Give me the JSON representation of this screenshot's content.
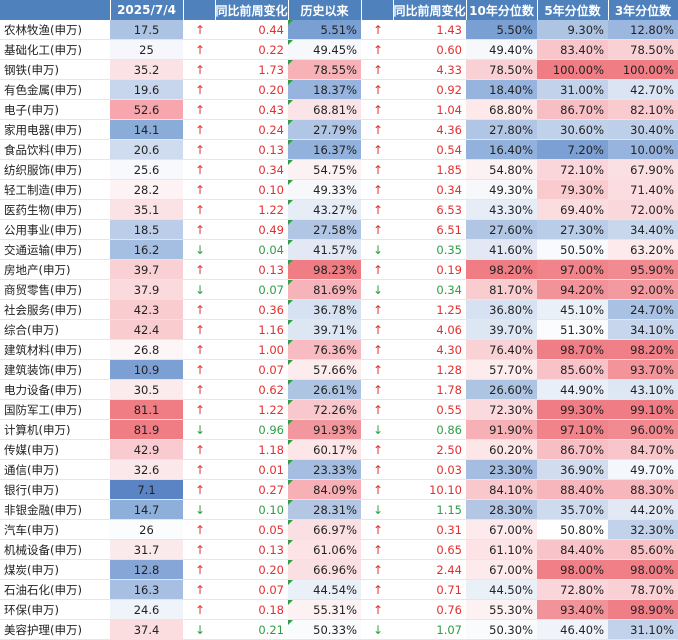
{
  "headers": [
    "",
    "2025/7/4",
    "",
    "同比前周变化",
    "历史以来",
    "",
    "同比前周变化",
    "10年分位数",
    "5年分位数",
    "3年分位数"
  ],
  "colors": {
    "header_bg": "#4f81bd",
    "up": "#e03030",
    "down": "#2e9d45"
  },
  "rows": [
    {
      "name": "农林牧渔(申万)",
      "val": "17.5",
      "a1": "↑",
      "c1": "0.44",
      "hist": "5.51%",
      "a2": "↑",
      "c2": "1.43",
      "p10": "5.50%",
      "p5": "9.30%",
      "p3": "12.80%",
      "bg": [
        "#adc3e3",
        "#7a9fd3",
        "#7a9fd3",
        "#aec4e3",
        "#9cb7df"
      ]
    },
    {
      "name": "基础化工(申万)",
      "val": "25",
      "a1": "↑",
      "c1": "0.22",
      "hist": "49.45%",
      "a2": "↑",
      "c2": "0.60",
      "p10": "49.40%",
      "p5": "83.40%",
      "p3": "78.50%",
      "bg": [
        "#f5f7fc",
        "#f7f8fc",
        "#f7f8fc",
        "#f8c5ca",
        "#f9d1d5"
      ]
    },
    {
      "name": "钢铁(申万)",
      "val": "35.2",
      "a1": "↑",
      "c1": "1.73",
      "hist": "78.55%",
      "a2": "↑",
      "c2": "4.33",
      "p10": "78.50%",
      "p5": "100.00%",
      "p3": "100.00%",
      "bg": [
        "#fbe3e5",
        "#f7b2b8",
        "#f9d1d5",
        "#f07c84",
        "#f07c84"
      ]
    },
    {
      "name": "有色金属(申万)",
      "val": "19.6",
      "a1": "↑",
      "c1": "0.20",
      "hist": "18.37%",
      "a2": "↑",
      "c2": "0.92",
      "p10": "18.40%",
      "p5": "31.00%",
      "p3": "42.70%",
      "bg": [
        "#c7d6ec",
        "#97b4de",
        "#97b4de",
        "#c1d2ea",
        "#dbe4f2"
      ]
    },
    {
      "name": "电子(申万)",
      "val": "52.6",
      "a1": "↑",
      "c1": "0.43",
      "hist": "68.81%",
      "a2": "↑",
      "c2": "1.04",
      "p10": "68.80%",
      "p5": "86.70%",
      "p3": "82.10%",
      "bg": [
        "#f7a6ad",
        "#fbe4e7",
        "#fde8ea",
        "#f7bec4",
        "#f9cbcf"
      ]
    },
    {
      "name": "家用电器(申万)",
      "val": "14.1",
      "a1": "↑",
      "c1": "0.24",
      "hist": "27.79%",
      "a2": "↑",
      "c2": "4.36",
      "p10": "27.80%",
      "p5": "30.60%",
      "p3": "30.40%",
      "bg": [
        "#8aacd9",
        "#b1c6e5",
        "#b1c6e5",
        "#c0d1ea",
        "#bed0e9"
      ]
    },
    {
      "name": "食品饮料(申万)",
      "val": "20.6",
      "a1": "↑",
      "c1": "0.13",
      "hist": "16.37%",
      "a2": "↑",
      "c2": "0.54",
      "p10": "16.40%",
      "p5": "7.20%",
      "p3": "10.00%",
      "bg": [
        "#cfdcef",
        "#92b1dc",
        "#92b1dc",
        "#7c9fd4",
        "#97b4de"
      ]
    },
    {
      "name": "纺织服饰(申万)",
      "val": "25.6",
      "a1": "↑",
      "c1": "0.34",
      "hist": "54.75%",
      "a2": "↑",
      "c2": "1.85",
      "p10": "54.80%",
      "p5": "72.10%",
      "p3": "67.90%",
      "bg": [
        "#f7f9fc",
        "#fdf2f3",
        "#fdf2f3",
        "#fad6da",
        "#fbe0e3"
      ]
    },
    {
      "name": "轻工制造(申万)",
      "val": "28.2",
      "a1": "↑",
      "c1": "0.10",
      "hist": "49.33%",
      "a2": "↑",
      "c2": "0.34",
      "p10": "49.30%",
      "p5": "79.30%",
      "p3": "71.40%",
      "bg": [
        "#fdf3f4",
        "#f7f8fc",
        "#f7f8fc",
        "#f9cbcf",
        "#fbdcdf"
      ]
    },
    {
      "name": "医药生物(申万)",
      "val": "35.1",
      "a1": "↑",
      "c1": "1.22",
      "hist": "43.27%",
      "a2": "↑",
      "c2": "6.53",
      "p10": "43.30%",
      "p5": "69.40%",
      "p3": "72.00%",
      "bg": [
        "#fbe3e5",
        "#e6edf7",
        "#e6edf7",
        "#fbdcdf",
        "#fad7db"
      ]
    },
    {
      "name": "公用事业(申万)",
      "val": "18.5",
      "a1": "↑",
      "c1": "0.49",
      "hist": "27.58%",
      "a2": "↑",
      "c2": "6.51",
      "p10": "27.60%",
      "p5": "27.30%",
      "p3": "34.40%",
      "bg": [
        "#bccde9",
        "#b1c6e5",
        "#b1c6e5",
        "#b9cce8",
        "#c8d7ec"
      ]
    },
    {
      "name": "交通运输(申万)",
      "val": "16.2",
      "a1": "↓",
      "c1": "0.04",
      "hist": "41.57%",
      "a2": "↓",
      "c2": "0.35",
      "p10": "41.60%",
      "p5": "50.50%",
      "p3": "63.20%",
      "bg": [
        "#a5bfe2",
        "#e2e9f5",
        "#e2e9f5",
        "#f9fafd",
        "#fceaec"
      ]
    },
    {
      "name": "房地产(申万)",
      "val": "39.7",
      "a1": "↑",
      "c1": "0.13",
      "hist": "98.23%",
      "a2": "↑",
      "c2": "0.19",
      "p10": "98.20%",
      "p5": "97.00%",
      "p3": "95.90%",
      "bg": [
        "#f9d0d4",
        "#f07c84",
        "#f07c84",
        "#f1848b",
        "#f28a91"
      ]
    },
    {
      "name": "商贸零售(申万)",
      "val": "37.9",
      "a1": "↓",
      "c1": "0.07",
      "hist": "81.69%",
      "a2": "↓",
      "c2": "0.34",
      "p10": "81.70%",
      "p5": "94.20%",
      "p3": "92.00%",
      "bg": [
        "#fbdadd",
        "#f6b4ba",
        "#f9ccd0",
        "#f29299",
        "#f39aa0"
      ]
    },
    {
      "name": "社会服务(申万)",
      "val": "42.3",
      "a1": "↑",
      "c1": "0.36",
      "hist": "36.78%",
      "a2": "↑",
      "c2": "1.25",
      "p10": "36.80%",
      "p5": "45.10%",
      "p3": "24.70%",
      "bg": [
        "#f9ccd0",
        "#d6e1f1",
        "#d6e1f1",
        "#eaf0f8",
        "#a9c1e3"
      ]
    },
    {
      "name": "综合(申万)",
      "val": "42.4",
      "a1": "↑",
      "c1": "1.16",
      "hist": "39.71%",
      "a2": "↑",
      "c2": "4.06",
      "p10": "39.70%",
      "p5": "51.30%",
      "p3": "34.10%",
      "bg": [
        "#f9ccd0",
        "#dde6f3",
        "#dde6f3",
        "#fbfcfe",
        "#c7d6ec"
      ]
    },
    {
      "name": "建筑材料(申万)",
      "val": "26.8",
      "a1": "↑",
      "c1": "1.00",
      "hist": "76.36%",
      "a2": "↑",
      "c2": "4.30",
      "p10": "76.40%",
      "p5": "98.70%",
      "p3": "98.20%",
      "bg": [
        "#fdf6f7",
        "#f8bbc1",
        "#f9d2d6",
        "#f07e86",
        "#f07f87"
      ]
    },
    {
      "name": "建筑装饰(申万)",
      "val": "10.9",
      "a1": "↑",
      "c1": "0.07",
      "hist": "57.66%",
      "a2": "↑",
      "c2": "1.28",
      "p10": "57.70%",
      "p5": "85.60%",
      "p3": "93.70%",
      "bg": [
        "#7c9fd4",
        "#fcecee",
        "#fcecee",
        "#f8c2c7",
        "#f3949b"
      ]
    },
    {
      "name": "电力设备(申万)",
      "val": "30.5",
      "a1": "↑",
      "c1": "0.62",
      "hist": "26.61%",
      "a2": "↑",
      "c2": "1.78",
      "p10": "26.60%",
      "p5": "44.90%",
      "p3": "43.10%",
      "bg": [
        "#fcebed",
        "#aec4e3",
        "#aec4e3",
        "#e9eff8",
        "#dde6f3"
      ]
    },
    {
      "name": "国防军工(申万)",
      "val": "81.1",
      "a1": "↑",
      "c1": "1.22",
      "hist": "72.26%",
      "a2": "↑",
      "c2": "0.55",
      "p10": "72.30%",
      "p5": "99.30%",
      "p3": "99.10%",
      "bg": [
        "#f07c84",
        "#f9c8cc",
        "#fbdadd",
        "#f07d85",
        "#f07d85"
      ]
    },
    {
      "name": "计算机(申万)",
      "val": "81.9",
      "a1": "↓",
      "c1": "0.96",
      "hist": "91.93%",
      "a2": "↓",
      "c2": "0.86",
      "p10": "91.90%",
      "p5": "97.10%",
      "p3": "96.00%",
      "bg": [
        "#f07c84",
        "#f3979e",
        "#f7b0b6",
        "#f1848b",
        "#f28a91"
      ]
    },
    {
      "name": "传媒(申万)",
      "val": "42.9",
      "a1": "↑",
      "c1": "1.18",
      "hist": "60.17%",
      "a2": "↑",
      "c2": "2.50",
      "p10": "60.20%",
      "p5": "86.70%",
      "p3": "84.70%",
      "bg": [
        "#f9cacf",
        "#fde6e8",
        "#fde6e8",
        "#f7bec4",
        "#f8c5ca"
      ]
    },
    {
      "name": "通信(申万)",
      "val": "32.6",
      "a1": "↑",
      "c1": "0.01",
      "hist": "23.33%",
      "a2": "↑",
      "c2": "0.03",
      "p10": "23.30%",
      "p5": "36.90%",
      "p3": "49.70%",
      "bg": [
        "#fae8ea",
        "#a4bde1",
        "#a4bde1",
        "#d1ddef",
        "#f4f7fb"
      ]
    },
    {
      "name": "银行(申万)",
      "val": "7.1",
      "a1": "↑",
      "c1": "0.27",
      "hist": "84.09%",
      "a2": "↑",
      "c2": "10.10",
      "p10": "84.10%",
      "p5": "88.40%",
      "p3": "88.30%",
      "bg": [
        "#5b84c4",
        "#f6b0b6",
        "#f8c8cc",
        "#f6b6bc",
        "#f6b6bc"
      ]
    },
    {
      "name": "非银金融(申万)",
      "val": "14.7",
      "a1": "↓",
      "c1": "0.10",
      "hist": "28.31%",
      "a2": "↓",
      "c2": "1.15",
      "p10": "28.30%",
      "p5": "35.70%",
      "p3": "44.20%",
      "bg": [
        "#8fafdb",
        "#b3c7e5",
        "#b3c7e5",
        "#cedbee",
        "#e2e9f5"
      ]
    },
    {
      "name": "汽车(申万)",
      "val": "26",
      "a1": "↑",
      "c1": "0.05",
      "hist": "66.97%",
      "a2": "↑",
      "c2": "0.31",
      "p10": "67.00%",
      "p5": "50.80%",
      "p3": "32.30%",
      "bg": [
        "#fbfcfe",
        "#fbe0e3",
        "#fdeaec",
        "#ffffff",
        "#c2d2eb"
      ]
    },
    {
      "name": "机械设备(申万)",
      "val": "31.7",
      "a1": "↑",
      "c1": "0.13",
      "hist": "61.06%",
      "a2": "↑",
      "c2": "0.65",
      "p10": "61.10%",
      "p5": "84.40%",
      "p3": "85.60%",
      "bg": [
        "#fbeaec",
        "#fde3e6",
        "#fde3e6",
        "#f8c4c9",
        "#f8c2c7"
      ]
    },
    {
      "name": "煤炭(申万)",
      "val": "12.8",
      "a1": "↑",
      "c1": "0.20",
      "hist": "66.96%",
      "a2": "↑",
      "c2": "2.44",
      "p10": "67.00%",
      "p5": "98.00%",
      "p3": "98.00%",
      "bg": [
        "#85a6d7",
        "#fbe0e3",
        "#fdeaec",
        "#f07f87",
        "#f07f87"
      ]
    },
    {
      "name": "石油石化(申万)",
      "val": "16.3",
      "a1": "↑",
      "c1": "0.07",
      "hist": "44.54%",
      "a2": "↑",
      "c2": "0.71",
      "p10": "44.50%",
      "p5": "72.80%",
      "p3": "78.70%",
      "bg": [
        "#a7bfe2",
        "#eaf0f8",
        "#eaf0f8",
        "#fad5d9",
        "#f9d1d5"
      ]
    },
    {
      "name": "环保(申万)",
      "val": "24.6",
      "a1": "↑",
      "c1": "0.18",
      "hist": "55.31%",
      "a2": "↑",
      "c2": "0.76",
      "p10": "55.30%",
      "p5": "93.40%",
      "p3": "98.90%",
      "bg": [
        "#eff3fa",
        "#fdf2f3",
        "#fdf2f3",
        "#f29299",
        "#f07e86"
      ]
    },
    {
      "name": "美容护理(申万)",
      "val": "37.4",
      "a1": "↓",
      "c1": "0.21",
      "hist": "50.33%",
      "a2": "↓",
      "c2": "1.07",
      "p10": "50.30%",
      "p5": "46.40%",
      "p3": "31.10%",
      "bg": [
        "#fbdcdf",
        "#fafbfd",
        "#fafbfd",
        "#f0f4fa",
        "#c2d2eb"
      ]
    }
  ]
}
